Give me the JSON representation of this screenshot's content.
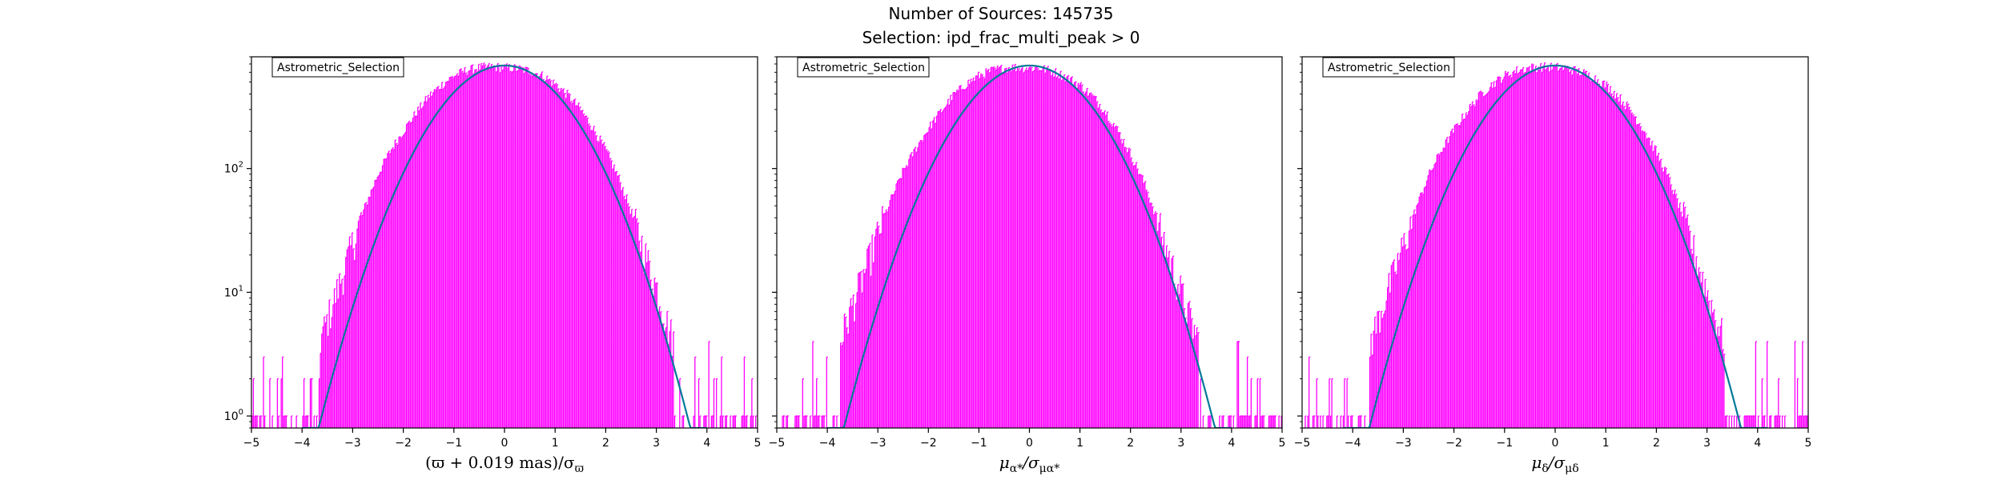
{
  "header": {
    "title_line1": "Number of Sources: 145735",
    "title_line2": "Selection: ipd_frac_multi_peak > 0"
  },
  "colors": {
    "histogram": "#ff00ff",
    "gaussian": "#007a99",
    "axes": "#000000"
  },
  "chart_data": [
    {
      "type": "line",
      "title": "",
      "legend": "Astrometric_Selection",
      "legend_placement": "top-left",
      "xlabel": "(ϖ + 0.019 mas)/σϖ",
      "xlabel_parts": {
        "main": "(ϖ + 0.019 mas)/σ",
        "sub": "ϖ"
      },
      "ylabel": "",
      "yscale": "log",
      "xlim": [
        -5,
        5
      ],
      "ylim": [
        0.8,
        800
      ],
      "xticks": [
        "−5",
        "−4",
        "−3",
        "−2",
        "−1",
        "0",
        "1",
        "2",
        "3",
        "4",
        "5"
      ],
      "yticks": [
        {
          "value": 1,
          "base": "10",
          "exp": "0"
        },
        {
          "value": 10,
          "base": "10",
          "exp": "1"
        },
        {
          "value": 100,
          "base": "10",
          "exp": "2"
        }
      ],
      "grid": false,
      "series": [
        {
          "name": "Astrometric_Selection",
          "kind": "histogram",
          "x": [
            -5.0,
            -4.75,
            -4.5,
            -4.25,
            -4.0,
            -3.75,
            -3.5,
            -3.25,
            -3.0,
            -2.75,
            -2.5,
            -2.25,
            -2.0,
            -1.75,
            -1.5,
            -1.25,
            -1.0,
            -0.75,
            -0.5,
            -0.25,
            0.0,
            0.25,
            0.5,
            0.75,
            1.0,
            1.25,
            1.5,
            1.75,
            2.0,
            2.25,
            2.5,
            2.75,
            3.0,
            3.25,
            3.5,
            3.75,
            4.0,
            4.25,
            4.5,
            4.75,
            5.0
          ],
          "y": [
            1,
            1,
            1,
            2,
            2,
            3,
            6,
            12,
            25,
            50,
            90,
            140,
            200,
            280,
            380,
            470,
            560,
            620,
            650,
            660,
            650,
            640,
            610,
            560,
            480,
            390,
            300,
            210,
            140,
            85,
            45,
            22,
            11,
            5,
            3,
            2,
            1,
            1,
            1,
            1,
            1
          ]
        },
        {
          "name": "",
          "kind": "gaussian_fit",
          "amplitude": 680,
          "mean": 0,
          "sigma": 1,
          "x_range": [
            -4.0,
            4.0
          ]
        }
      ]
    },
    {
      "type": "line",
      "title": "",
      "legend": "Astrometric_Selection",
      "legend_placement": "top-left",
      "xlabel": "μα*/σμα*",
      "xlabel_parts": {
        "main": "μ",
        "sub1": "α*",
        "mid": "/σ",
        "sub2": "μα*"
      },
      "ylabel": "",
      "yscale": "log",
      "xlim": [
        -5,
        5
      ],
      "ylim": [
        0.8,
        800
      ],
      "xticks": [
        "−5",
        "−4",
        "−3",
        "−2",
        "−1",
        "0",
        "1",
        "2",
        "3",
        "4",
        "5"
      ],
      "grid": false,
      "series": [
        {
          "name": "Astrometric_Selection",
          "kind": "histogram",
          "x": [
            -5.0,
            -4.75,
            -4.5,
            -4.25,
            -4.0,
            -3.75,
            -3.5,
            -3.25,
            -3.0,
            -2.75,
            -2.5,
            -2.25,
            -2.0,
            -1.75,
            -1.5,
            -1.25,
            -1.0,
            -0.75,
            -0.5,
            -0.25,
            0.0,
            0.25,
            0.5,
            0.75,
            1.0,
            1.25,
            1.5,
            1.75,
            2.0,
            2.25,
            2.5,
            2.75,
            3.0,
            3.25,
            3.5,
            3.75,
            4.0,
            4.25,
            4.5,
            4.75,
            5.0
          ],
          "y": [
            1,
            1,
            1,
            2,
            2,
            4,
            8,
            15,
            30,
            55,
            95,
            145,
            210,
            290,
            390,
            480,
            560,
            615,
            645,
            655,
            650,
            640,
            600,
            540,
            470,
            380,
            290,
            200,
            130,
            80,
            42,
            20,
            10,
            5,
            3,
            2,
            1,
            1,
            1,
            1,
            1
          ]
        },
        {
          "name": "",
          "kind": "gaussian_fit",
          "amplitude": 680,
          "mean": 0,
          "sigma": 1,
          "x_range": [
            -4.0,
            4.0
          ]
        }
      ]
    },
    {
      "type": "line",
      "title": "",
      "legend": "Astrometric_Selection",
      "legend_placement": "top-left",
      "xlabel": "μδ/σμδ",
      "xlabel_parts": {
        "main": "μ",
        "sub1": "δ",
        "mid": "/σ",
        "sub2": "μδ"
      },
      "ylabel": "",
      "yscale": "log",
      "xlim": [
        -5,
        5
      ],
      "ylim": [
        0.8,
        800
      ],
      "xticks": [
        "−5",
        "−4",
        "−3",
        "−2",
        "−1",
        "0",
        "1",
        "2",
        "3",
        "4",
        "5"
      ],
      "grid": false,
      "series": [
        {
          "name": "Astrometric_Selection",
          "kind": "histogram",
          "x": [
            -5.0,
            -4.75,
            -4.5,
            -4.25,
            -4.0,
            -3.75,
            -3.5,
            -3.25,
            -3.0,
            -2.75,
            -2.5,
            -2.25,
            -2.0,
            -1.75,
            -1.5,
            -1.25,
            -1.0,
            -0.75,
            -0.5,
            -0.25,
            0.0,
            0.25,
            0.5,
            0.75,
            1.0,
            1.25,
            1.5,
            1.75,
            2.0,
            2.25,
            2.5,
            2.75,
            3.0,
            3.25,
            3.5,
            3.75,
            4.0,
            4.25,
            4.5,
            4.75,
            5.0
          ],
          "y": [
            1,
            1,
            1,
            1,
            2,
            3,
            6,
            12,
            24,
            48,
            88,
            140,
            205,
            285,
            385,
            475,
            560,
            620,
            650,
            660,
            655,
            640,
            600,
            545,
            470,
            380,
            290,
            205,
            135,
            82,
            44,
            21,
            10,
            5,
            3,
            2,
            1,
            1,
            1,
            1,
            1
          ]
        },
        {
          "name": "",
          "kind": "gaussian_fit",
          "amplitude": 680,
          "mean": 0,
          "sigma": 1,
          "x_range": [
            -4.2,
            4.2
          ]
        }
      ]
    }
  ]
}
